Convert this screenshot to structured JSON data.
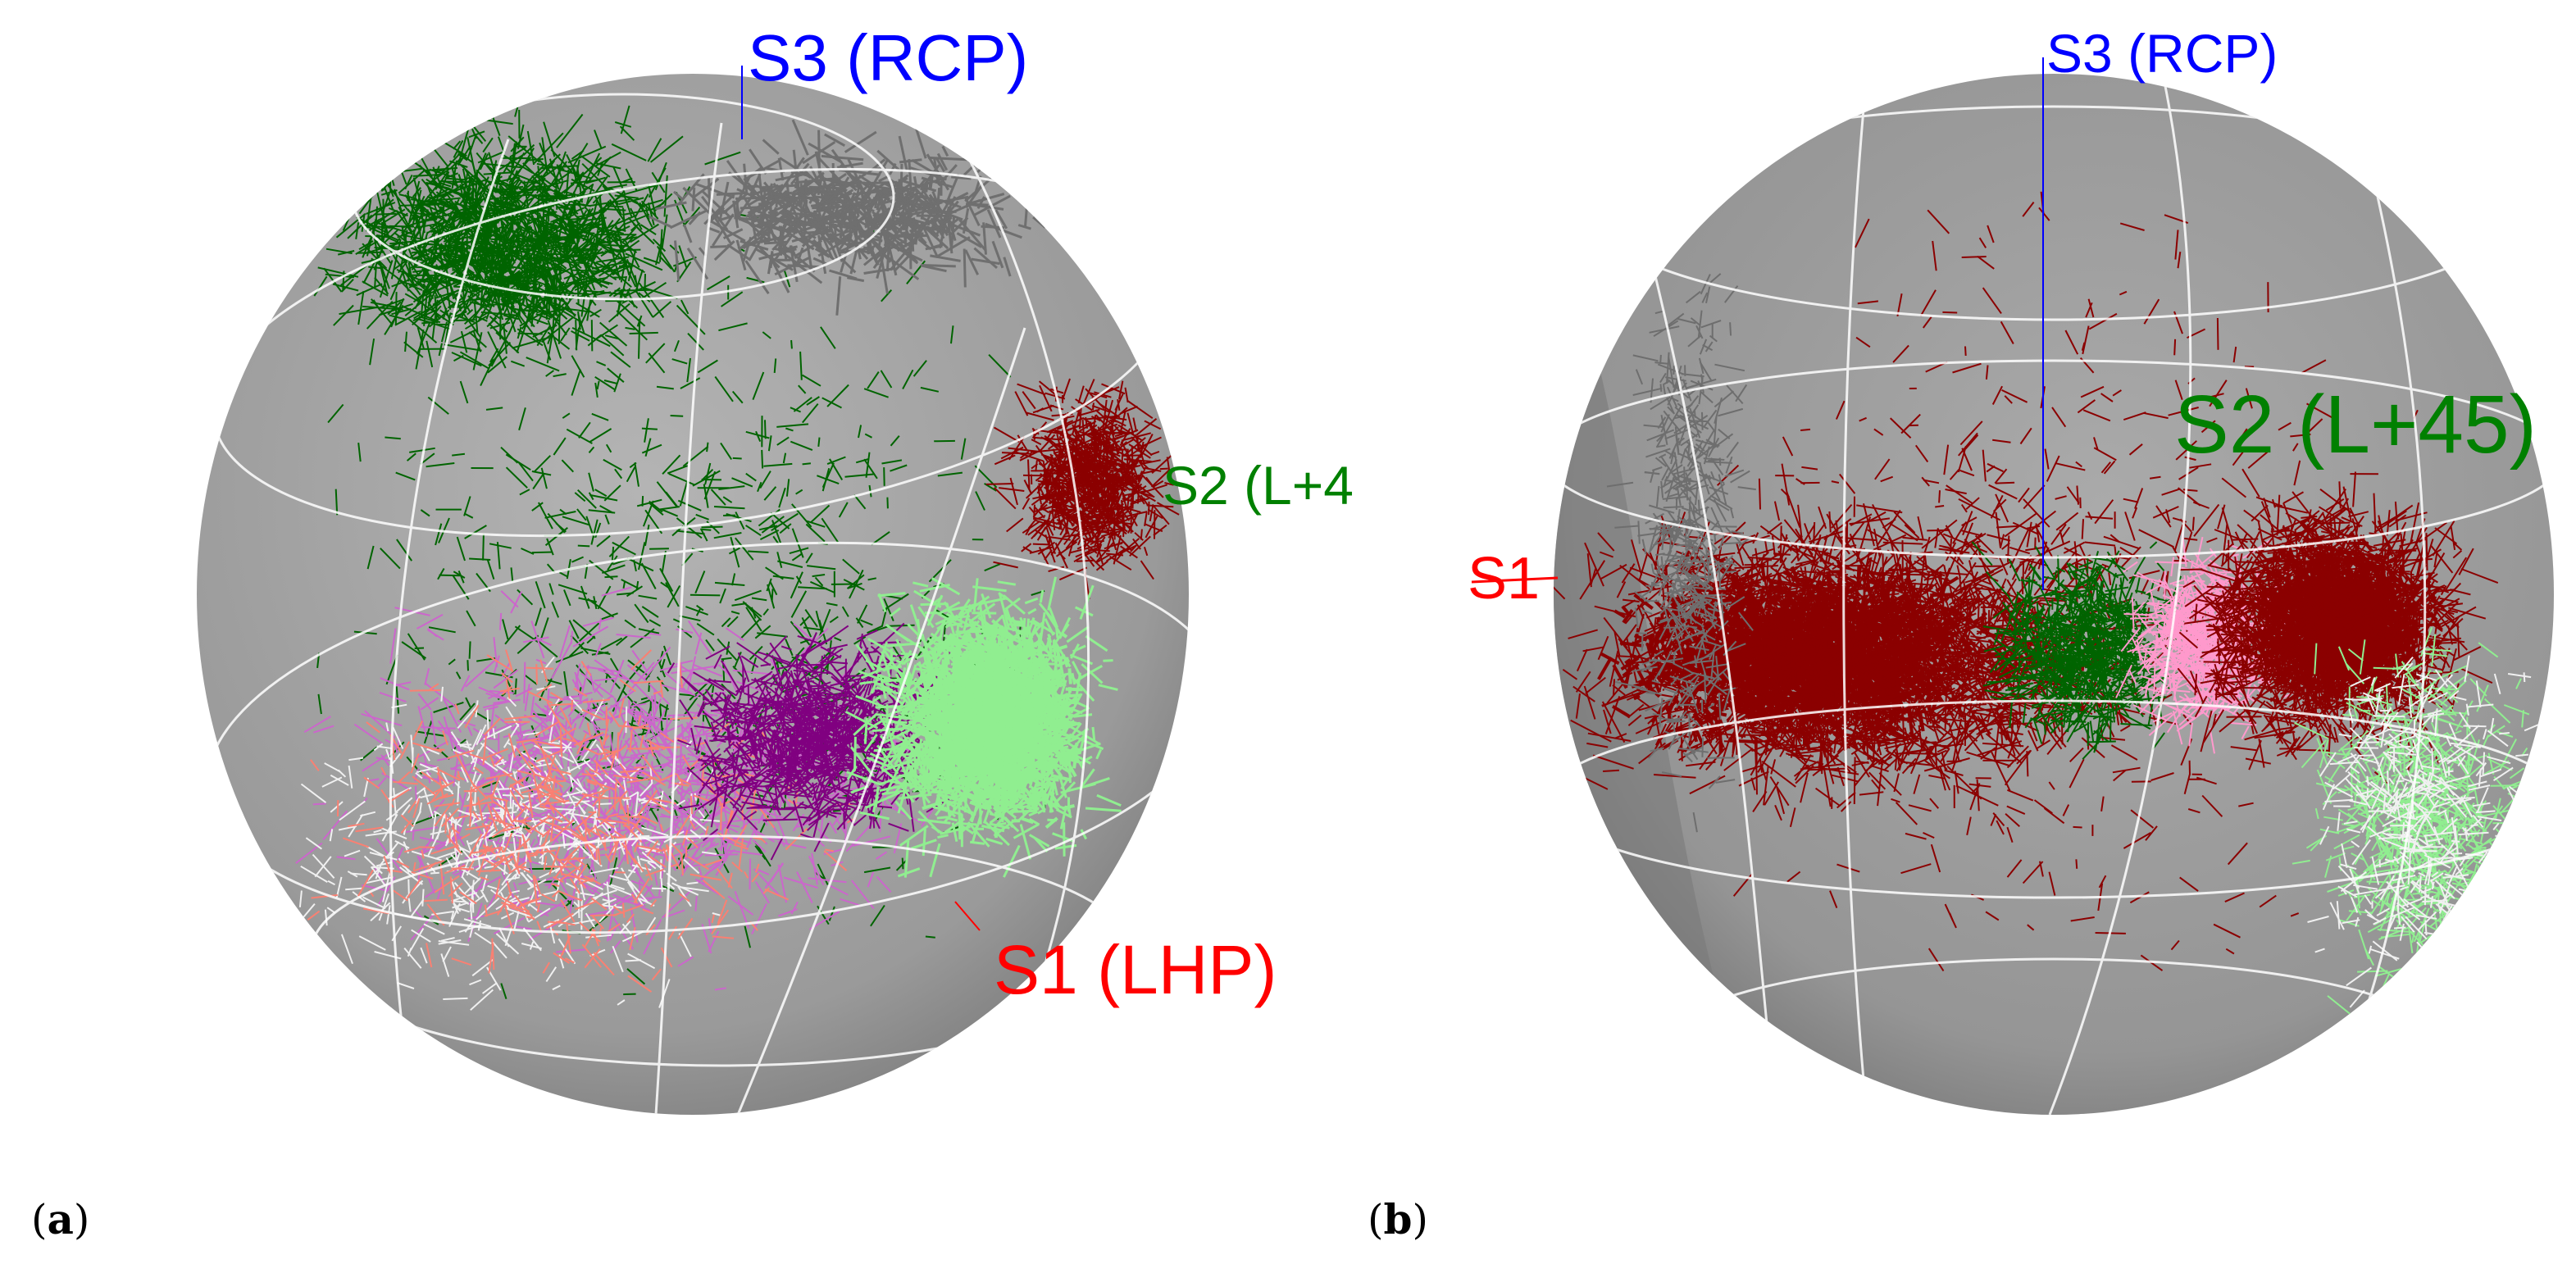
{
  "panels": [
    {
      "label_open": "(",
      "label_letter": "a",
      "label_close": ")",
      "axes": {
        "s3": "S3 (RCP)",
        "s2": "S2 (L+4",
        "s1": "S1 (LHP)"
      }
    },
    {
      "label_open": "(",
      "label_letter": "b",
      "label_close": ")",
      "axes": {
        "s3": "S3 (RCP)",
        "s2": "S2 (L+45)",
        "s1": "S1"
      }
    }
  ],
  "colors": {
    "sphere_light": "#b0b0b0",
    "sphere_dark": "#808080",
    "grid": "#ffffff",
    "s1_axis": "#ff0000",
    "s2_axis": "#008000",
    "s3_axis": "#0000ff",
    "dark_green": "#006400",
    "dark_red": "#8b0000",
    "purple": "#800080",
    "violet": "#cc66cc",
    "light_green": "#90ee90",
    "salmon": "#fa8072",
    "pink": "#ff99cc",
    "white_trace": "#f0f0f0"
  }
}
